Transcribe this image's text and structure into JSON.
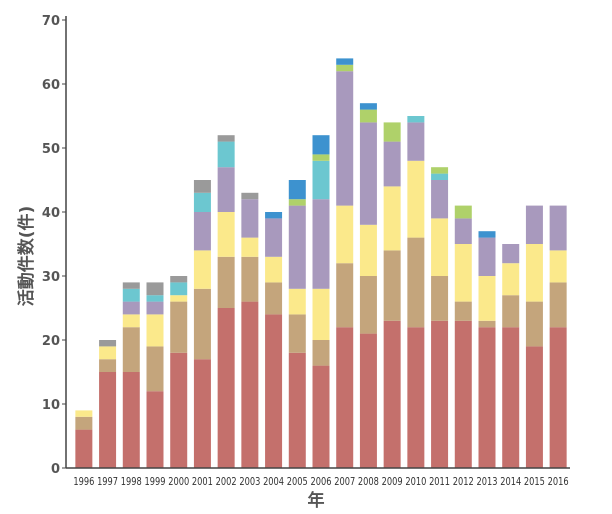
{
  "chart_data": {
    "type": "bar",
    "stacked": true,
    "categories": [
      "1996",
      "1997",
      "1998",
      "1999",
      "2000",
      "2001",
      "2002",
      "2003",
      "2004",
      "2005",
      "2006",
      "2007",
      "2008",
      "2009",
      "2010",
      "2011",
      "2012",
      "2013",
      "2014",
      "2015",
      "2016"
    ],
    "xlabel": "年",
    "ylabel": "活動件数(件)",
    "ylim": [
      0,
      70
    ],
    "yticks": [
      0,
      10,
      20,
      30,
      40,
      50,
      60,
      70
    ],
    "grid": false,
    "legend": "none",
    "series": [
      {
        "color": "#c4706c",
        "values": [
          6,
          15,
          15,
          12,
          18,
          17,
          25,
          26,
          24,
          18,
          16,
          22,
          21,
          23,
          22,
          23,
          23,
          22,
          22,
          19,
          22
        ]
      },
      {
        "color": "#c4a57c",
        "values": [
          2,
          2,
          7,
          7,
          8,
          11,
          8,
          7,
          5,
          6,
          4,
          10,
          9,
          11,
          14,
          7,
          3,
          1,
          5,
          7,
          7
        ]
      },
      {
        "color": "#fbe98b",
        "values": [
          1,
          2,
          2,
          5,
          1,
          6,
          7,
          3,
          4,
          4,
          8,
          9,
          8,
          10,
          12,
          9,
          9,
          7,
          5,
          9,
          5
        ]
      },
      {
        "color": "#a899bd",
        "values": [
          0,
          0,
          2,
          2,
          0,
          6,
          7,
          6,
          6,
          13,
          14,
          21,
          16,
          7,
          6,
          6,
          4,
          6,
          3,
          6,
          7
        ]
      },
      {
        "color": "#6cc7d0",
        "values": [
          0,
          0,
          2,
          1,
          2,
          3,
          4,
          0,
          0,
          0,
          6,
          0,
          0,
          0,
          1,
          1,
          0,
          0,
          0,
          0,
          0
        ]
      },
      {
        "color": "#afd16a",
        "values": [
          0,
          0,
          0,
          0,
          0,
          0,
          0,
          0,
          0,
          1,
          1,
          1,
          2,
          3,
          0,
          1,
          2,
          0,
          0,
          0,
          0
        ]
      },
      {
        "color": "#3d92cf",
        "values": [
          0,
          0,
          0,
          0,
          0,
          0,
          0,
          0,
          1,
          3,
          3,
          1,
          1,
          0,
          0,
          0,
          0,
          1,
          0,
          0,
          0
        ]
      },
      {
        "color": "#9a9a9a",
        "values": [
          0,
          1,
          1,
          2,
          1,
          2,
          1,
          1,
          0,
          0,
          0,
          0,
          0,
          0,
          0,
          0,
          0,
          0,
          0,
          0,
          0
        ]
      }
    ]
  }
}
